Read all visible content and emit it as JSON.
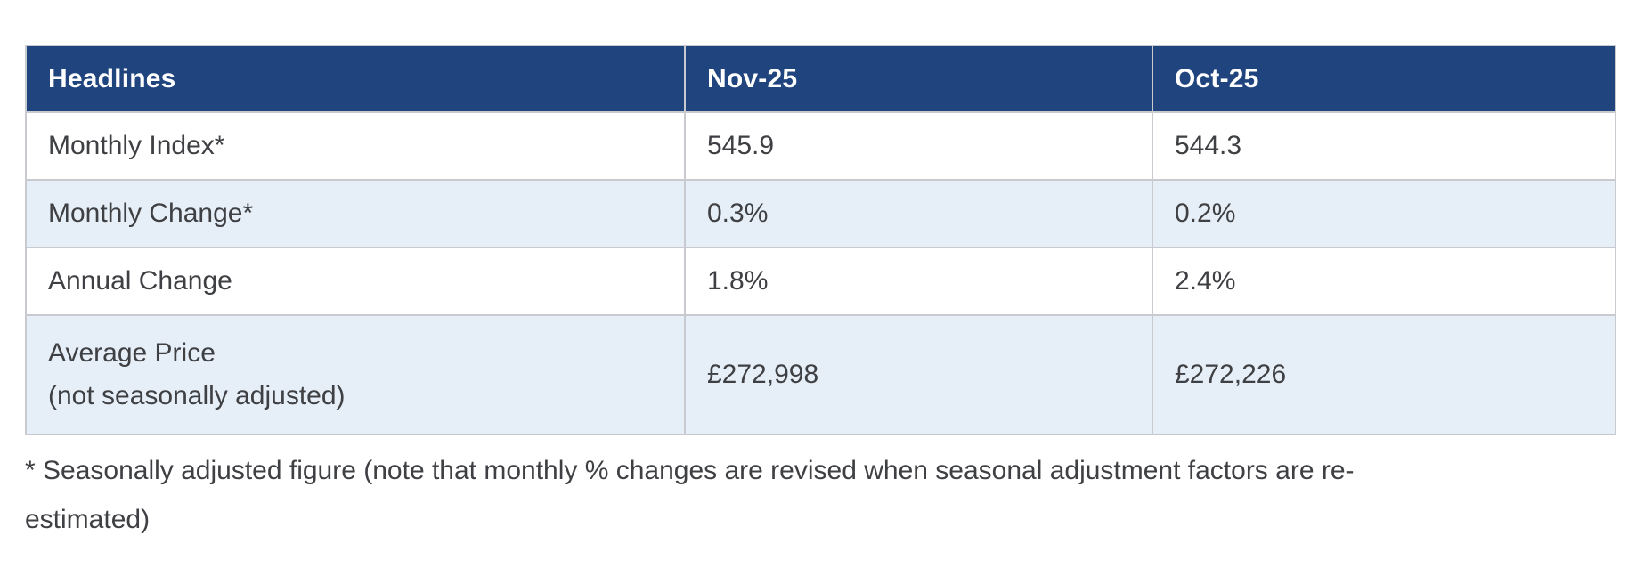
{
  "colors": {
    "header_bg": "#20457e",
    "header_text": "#ffffff",
    "alt_row_bg": "#e6eff8",
    "row_bg": "#ffffff",
    "border": "#c8cad0",
    "body_text": "#3f4043"
  },
  "table": {
    "columns": [
      "Headlines",
      "Nov-25",
      "Oct-25"
    ],
    "rows": [
      {
        "label": "Monthly Index*",
        "nov": "545.9",
        "oct": "544.3"
      },
      {
        "label": "Monthly Change*",
        "nov": "0.3%",
        "oct": "0.2%"
      },
      {
        "label": "Annual Change",
        "nov": "1.8%",
        "oct": "2.4%"
      },
      {
        "label": "Average Price",
        "label_line2": "(not seasonally adjusted)",
        "nov": "£272,998",
        "oct": "£272,226"
      }
    ]
  },
  "footnote": "* Seasonally adjusted figure (note that monthly % changes are revised when seasonal adjustment factors are re-estimated)"
}
